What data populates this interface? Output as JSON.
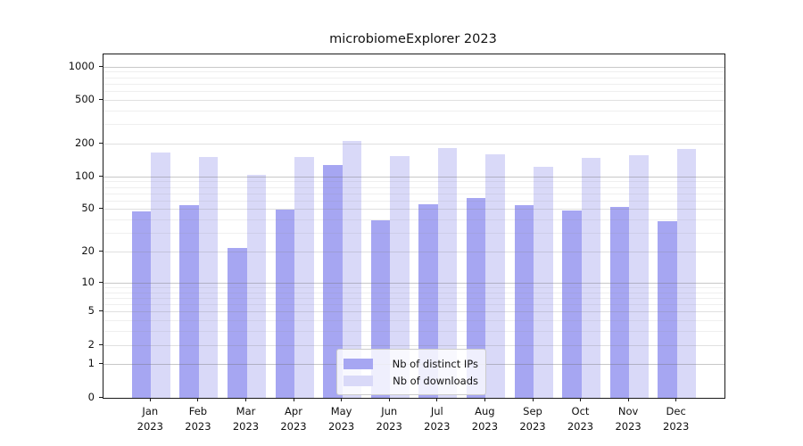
{
  "chart_data": {
    "type": "bar",
    "title": "microbiomeExplorer 2023",
    "categories": [
      "Jan",
      "Feb",
      "Mar",
      "Apr",
      "May",
      "Jun",
      "Jul",
      "Aug",
      "Sep",
      "Oct",
      "Nov",
      "Dec"
    ],
    "category_year": "2023",
    "series": [
      {
        "name": "Nb of distinct IPs",
        "color": "#a6a6f2",
        "values": [
          48,
          55,
          22,
          50,
          128,
          40,
          56,
          64,
          55,
          49,
          53,
          39
        ]
      },
      {
        "name": "Nb of downloads",
        "color": "#d9d9f8",
        "values": [
          168,
          151,
          105,
          152,
          212,
          155,
          184,
          161,
          124,
          150,
          158,
          178
        ]
      }
    ],
    "yscale": "log1p-symlog",
    "ylim": [
      0,
      1300
    ],
    "yticks": [
      0,
      1,
      2,
      5,
      10,
      20,
      50,
      100,
      200,
      500,
      1000
    ],
    "ytick_labels": [
      "0",
      "1",
      "2",
      "5",
      "10",
      "20",
      "50",
      "100",
      "200",
      "500",
      "1000"
    ],
    "ytick_mid_gridlines": [
      2,
      5,
      20,
      50,
      200,
      500
    ],
    "ytick_minor_gridlines": [
      3,
      4,
      6,
      7,
      8,
      9,
      30,
      40,
      60,
      70,
      80,
      90,
      300,
      400,
      600,
      700,
      800,
      900
    ],
    "grid": "on",
    "legend_position": "lower center",
    "xlabel": "",
    "ylabel": ""
  }
}
